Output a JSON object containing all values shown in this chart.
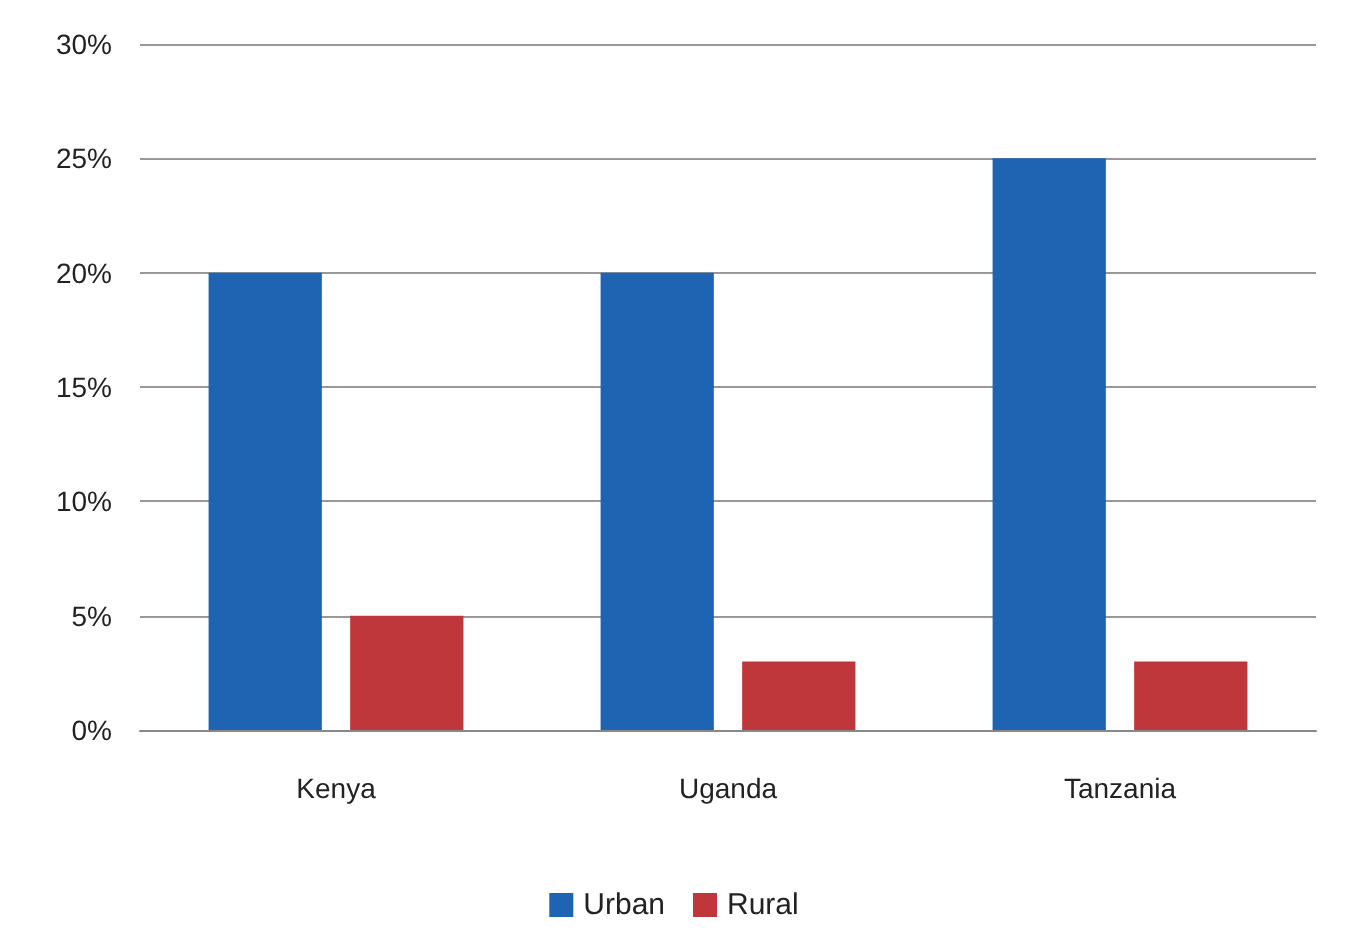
{
  "chart_data": {
    "type": "bar",
    "categories": [
      "Kenya",
      "Uganda",
      "Tanzania"
    ],
    "series": [
      {
        "name": "Urban",
        "color": "#1f63b3",
        "values": [
          20,
          20,
          25
        ]
      },
      {
        "name": "Rural",
        "color": "#c0373b",
        "values": [
          5,
          3,
          3
        ]
      }
    ],
    "ylim": [
      0,
      30
    ],
    "yticks": [
      {
        "value": 0,
        "label": "0%"
      },
      {
        "value": 5,
        "label": "5%"
      },
      {
        "value": 10,
        "label": "10%"
      },
      {
        "value": 15,
        "label": "15%"
      },
      {
        "value": 20,
        "label": "20%"
      },
      {
        "value": 25,
        "label": "25%"
      },
      {
        "value": 30,
        "label": "30%"
      }
    ],
    "grid": "y",
    "legend": "bottom"
  }
}
